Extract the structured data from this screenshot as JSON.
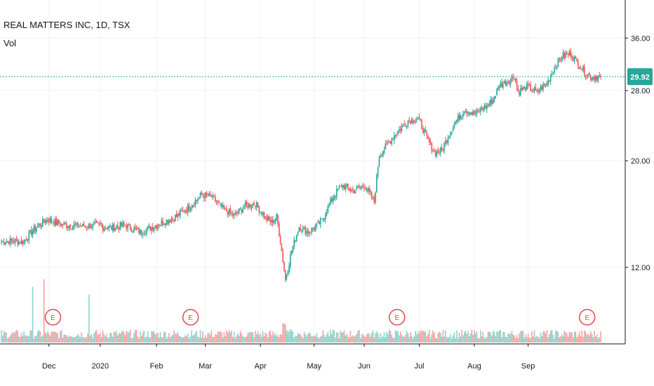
{
  "chart_data": {
    "type": "candlestick",
    "title": "REAL MATTERS INC, 1D, TSX",
    "volume_label": "Vol",
    "last_price": "29.92",
    "colors": {
      "up": "#26a69a",
      "down": "#ef5350",
      "up_vol": "#8fd3cb",
      "down_vol": "#f5a3a1",
      "price_line": "#26a69a",
      "earnings": "#e04848"
    },
    "y_ticks": [
      "12.00",
      "20.00",
      "28.00",
      "36.00"
    ],
    "y_range": [
      8.1,
      36.3
    ],
    "x_ticks": [
      "Dec",
      "2020",
      "Feb",
      "Mar",
      "Apr",
      "May",
      "Jun",
      "Jul",
      "Aug",
      "Sep"
    ],
    "earnings_marker": "E",
    "earnings_bar_index": [
      30,
      140,
      305,
      457
    ],
    "scale": "log",
    "grid": true,
    "close_path": [
      [
        0,
        13.6
      ],
      [
        18,
        13.6
      ],
      [
        25,
        14.3
      ],
      [
        33,
        14.9
      ],
      [
        38,
        15.1
      ],
      [
        45,
        14.8
      ],
      [
        62,
        14.6
      ],
      [
        76,
        14.7
      ],
      [
        88,
        14.5
      ],
      [
        98,
        14.7
      ],
      [
        111,
        14.2
      ],
      [
        121,
        14.6
      ],
      [
        132,
        15.0
      ],
      [
        141,
        15.4
      ],
      [
        150,
        16.0
      ],
      [
        160,
        17.0
      ],
      [
        168,
        16.8
      ],
      [
        178,
        15.8
      ],
      [
        186,
        15.4
      ],
      [
        195,
        16.1
      ],
      [
        203,
        16.3
      ],
      [
        211,
        15.2
      ],
      [
        216,
        14.9
      ],
      [
        220,
        15.3
      ],
      [
        224,
        13.0
      ],
      [
        227,
        11.3
      ],
      [
        232,
        13.0
      ],
      [
        238,
        14.6
      ],
      [
        245,
        14.2
      ],
      [
        250,
        14.5
      ],
      [
        256,
        15.0
      ],
      [
        265,
        16.8
      ],
      [
        272,
        17.8
      ],
      [
        281,
        17.3
      ],
      [
        290,
        17.8
      ],
      [
        298,
        16.4
      ],
      [
        302,
        20.5
      ],
      [
        308,
        21.5
      ],
      [
        315,
        22.8
      ],
      [
        325,
        24.2
      ],
      [
        333,
        24.5
      ],
      [
        340,
        22.3
      ],
      [
        346,
        20.8
      ],
      [
        352,
        21.0
      ],
      [
        358,
        22.8
      ],
      [
        364,
        24.3
      ],
      [
        370,
        25.6
      ],
      [
        378,
        25.0
      ],
      [
        388,
        26.0
      ],
      [
        393,
        26.8
      ],
      [
        398,
        28.7
      ],
      [
        404,
        29.2
      ],
      [
        410,
        30.0
      ],
      [
        413,
        27.8
      ],
      [
        420,
        28.5
      ],
      [
        428,
        27.8
      ],
      [
        436,
        29.0
      ],
      [
        442,
        31.2
      ],
      [
        448,
        33.0
      ],
      [
        455,
        33.5
      ],
      [
        460,
        32.0
      ],
      [
        467,
        30.5
      ],
      [
        471,
        29.9
      ],
      [
        479,
        29.92
      ]
    ],
    "volume_spikes": [
      [
        25,
        0.72
      ],
      [
        34,
        0.82
      ],
      [
        70,
        0.62
      ]
    ]
  }
}
